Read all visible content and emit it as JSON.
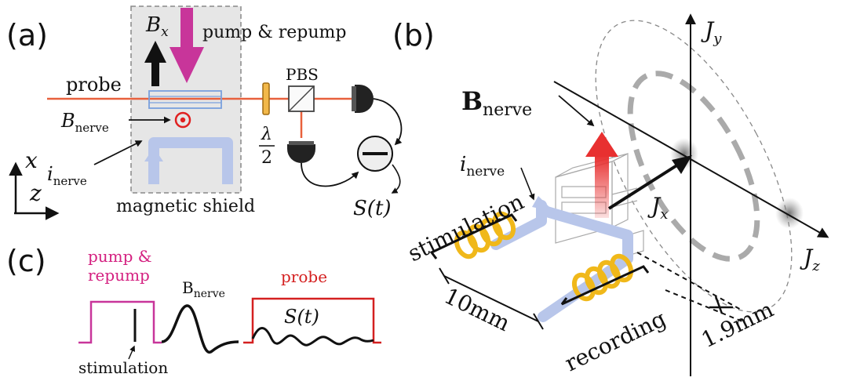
{
  "panels": {
    "a": "(a)",
    "b": "(b)",
    "c": "(c)"
  },
  "panel_a": {
    "bx_main": "B",
    "bx_sub": "x",
    "pump_repump": "pump & repump",
    "probe": "probe",
    "pbs": "PBS",
    "lambda_num": "λ",
    "lambda_den": "2",
    "bnerve_main": "B",
    "bnerve_sub": "nerve",
    "inerve_main": "i",
    "inerve_sub": "nerve",
    "axis_x": "x",
    "axis_z": "z",
    "magnetic_shield": "magnetic shield",
    "signal": "S(t)"
  },
  "panel_b": {
    "bnerve_main": "B",
    "bnerve_sub": "nerve",
    "inerve_main": "i",
    "inerve_sub": "nerve",
    "stimulation": "stimulation",
    "recording": "recording",
    "dim_10mm": "10mm",
    "dim_19mm": "1.9mm",
    "jx_main": "J",
    "jx_sub": "x",
    "jy_main": "J",
    "jy_sub": "y",
    "jz_main": "J",
    "jz_sub": "z"
  },
  "panel_c": {
    "pump_line1": "pump &",
    "pump_line2": "repump",
    "bnerve_main": "B",
    "bnerve_sub": "nerve",
    "probe": "probe",
    "signal": "S(t)",
    "stimulation": "stimulation"
  },
  "colors": {
    "pump": "#c8359a",
    "probe_beam": "#e8603c",
    "nerve": "#b8c6ea",
    "coil": "#f0b81a",
    "arrow_red": "#e83030",
    "probe_text": "#d42020",
    "pump_text": "#d42080"
  }
}
